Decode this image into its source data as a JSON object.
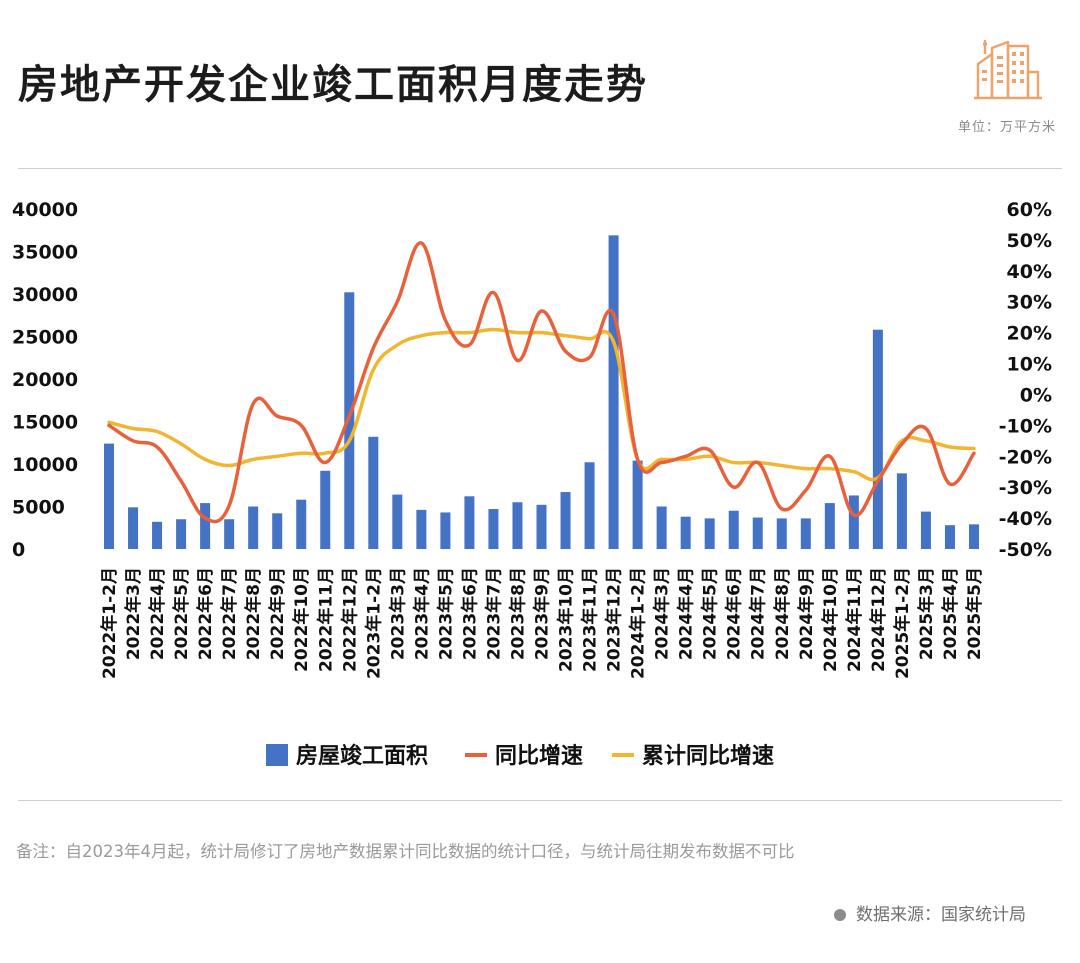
{
  "header": {
    "title": "房地产开发企业竣工面积月度走势",
    "unit": "单位：万平方米",
    "logo_icon": "city-buildings-icon"
  },
  "footer": {
    "note": "备注：自2023年4月起，统计局修订了房地产数据累计同比数据的统计口径，与统计局往期发布数据不可比",
    "source": "数据来源：国家统计局"
  },
  "colors": {
    "bar": "#4472C4",
    "yoy": "#E8613B",
    "cumulative": "#F2B531",
    "logo": "#F0A26B"
  },
  "chart_data": {
    "type": "bar",
    "categories": [
      "2022年1-2月",
      "2022年3月",
      "2022年4月",
      "2022年5月",
      "2022年6月",
      "2022年7月",
      "2022年8月",
      "2022年9月",
      "2022年10月",
      "2022年11月",
      "2022年12月",
      "2023年1-2月",
      "2023年3月",
      "2023年4月",
      "2023年5月",
      "2023年6月",
      "2023年7月",
      "2023年8月",
      "2023年9月",
      "2023年10月",
      "2023年11月",
      "2023年12月",
      "2024年1-2月",
      "2024年3月",
      "2024年4月",
      "2024年5月",
      "2024年6月",
      "2024年7月",
      "2024年8月",
      "2024年9月",
      "2024年10月",
      "2024年11月",
      "2024年12月",
      "2025年1-2月",
      "2025年3月",
      "2025年4月",
      "2025年5月"
    ],
    "series": [
      {
        "name": "房屋竣工面积",
        "type": "bar",
        "axis": "left",
        "values": [
          12400,
          4900,
          3200,
          3500,
          5400,
          3500,
          5000,
          4200,
          5800,
          9200,
          30200,
          13200,
          6400,
          4600,
          4300,
          6200,
          4700,
          5500,
          5200,
          6700,
          10200,
          36900,
          10400,
          5000,
          3800,
          3600,
          4500,
          3700,
          3600,
          3600,
          5400,
          6300,
          25800,
          8900,
          4400,
          2800,
          2900
        ]
      },
      {
        "name": "同比增速",
        "type": "line",
        "axis": "right",
        "values": [
          -10.0,
          -15.0,
          -17.0,
          -28.0,
          -40.0,
          -36.0,
          -3.0,
          -7.0,
          -10.0,
          -22.0,
          -7.0,
          15.0,
          30.0,
          49.0,
          24.0,
          16.0,
          33.0,
          11.0,
          27.0,
          14.0,
          12.0,
          26.0,
          -21.0,
          -22.0,
          -20.0,
          -18.0,
          -30.0,
          -22.0,
          -37.0,
          -31.0,
          -20.0,
          -39.0,
          -28.0,
          -16.0,
          -11.0,
          -29.0,
          -19.0
        ]
      },
      {
        "name": "累计同比增速",
        "type": "line",
        "axis": "right",
        "values": [
          -9.0,
          -11.0,
          -12.0,
          -16.0,
          -21.0,
          -23.0,
          -21.0,
          -20.0,
          -19.0,
          -19.0,
          -15.0,
          8.0,
          16.0,
          19.0,
          20.0,
          20.0,
          21.0,
          20.0,
          20.0,
          19.0,
          18.0,
          17.0,
          -21.0,
          -21.0,
          -21.0,
          -20.0,
          -22.0,
          -22.0,
          -23.0,
          -24.0,
          -24.0,
          -25.0,
          -27.0,
          -15.0,
          -15.0,
          -17.0,
          -17.5
        ]
      }
    ],
    "ylim_left": [
      0,
      40000
    ],
    "yticks_left": [
      0,
      5000,
      10000,
      15000,
      20000,
      25000,
      30000,
      35000,
      40000
    ],
    "ylim_right": [
      -50,
      60
    ],
    "yticks_right": [
      "-50%",
      "-40%",
      "-30%",
      "-20%",
      "-10%",
      "0%",
      "10%",
      "20%",
      "30%",
      "40%",
      "50%",
      "60%"
    ],
    "legend": [
      "房屋竣工面积",
      "同比增速",
      "累计同比增速"
    ],
    "legend_position": "bottom",
    "grid": false
  }
}
